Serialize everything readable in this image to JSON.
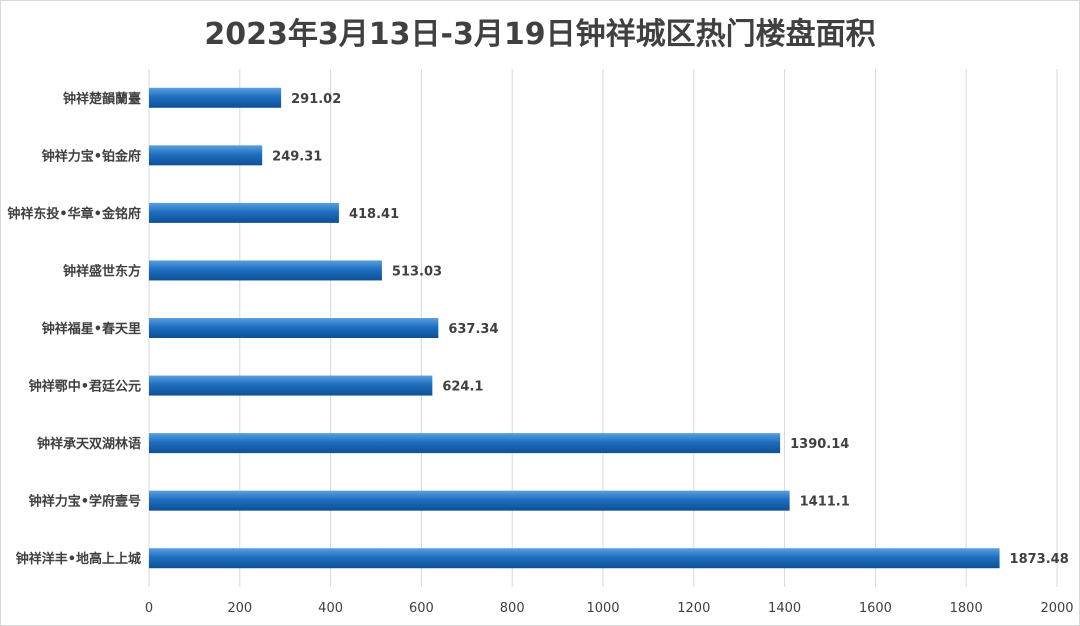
{
  "chart_data": {
    "type": "bar",
    "orientation": "horizontal",
    "title": "2023年3月13日-3月19日钟祥城区热门楼盘面积",
    "categories": [
      "钟祥楚韻蘭臺",
      "钟祥力宝•铂金府",
      "钟祥东投•华章•金铭府",
      "钟祥盛世东方",
      "钟祥福星•春天里",
      "钟祥鄂中•君廷公元",
      "钟祥承天双湖林语",
      "钟祥力宝•学府壹号",
      "钟祥洋丰•地高上上城"
    ],
    "values": [
      291.02,
      249.31,
      418.41,
      513.03,
      637.34,
      624.1,
      1390.14,
      1411.1,
      1873.48
    ],
    "value_labels": [
      "291.02",
      "249.31",
      "418.41",
      "513.03",
      "637.34",
      "624.1",
      "1390.14",
      "1411.1",
      "1873.48"
    ],
    "xlim": [
      0,
      2000
    ],
    "xticks": [
      0,
      200,
      400,
      600,
      800,
      1000,
      1200,
      1400,
      1600,
      1800,
      2000
    ],
    "grid": "vertical",
    "legend": "none",
    "bar_color": "#1f6fc0"
  }
}
